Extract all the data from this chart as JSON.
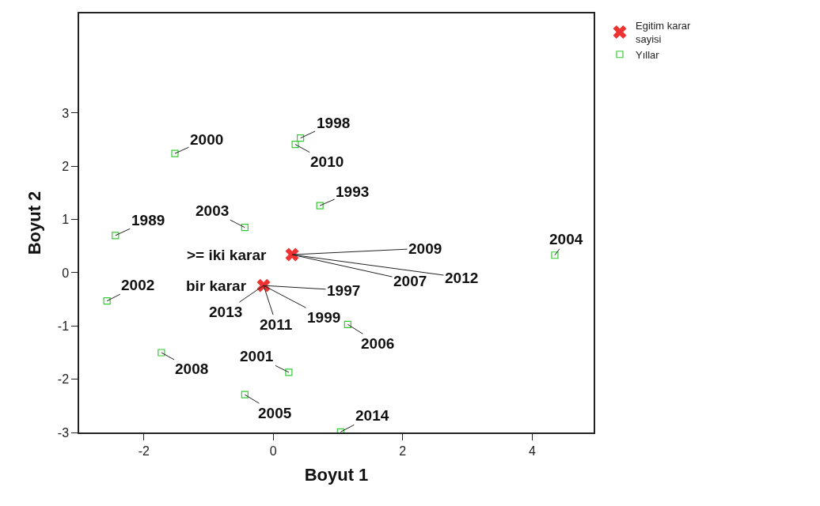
{
  "chart_data": {
    "type": "scatter",
    "xlabel": "Boyut 1",
    "ylabel": "Boyut 2",
    "xlim": [
      -3,
      4.95
    ],
    "ylim": [
      -3,
      4.87
    ],
    "xticks": [
      -2,
      0,
      2,
      4
    ],
    "yticks": [
      -3,
      -2,
      -1,
      0,
      1,
      2,
      3
    ],
    "legend": "top right",
    "series": [
      {
        "name": "Yıllar",
        "color": "#33cc33",
        "marker": "square",
        "x": [
          -1.52,
          0.42,
          0.34,
          0.72,
          -0.44,
          -2.44,
          4.35,
          -2.57,
          1.15,
          -1.73,
          0.24,
          -0.44,
          1.04,
          null,
          null,
          null,
          null,
          null,
          null,
          null
        ],
        "values": [
          2.24,
          2.53,
          2.41,
          1.26,
          0.85,
          0.7,
          0.33,
          -0.53,
          -0.97,
          -1.5,
          -1.87,
          -2.29,
          -2.99,
          null,
          null,
          null,
          null,
          null,
          null,
          null
        ]
      },
      {
        "name": "Egitim karar sayisi",
        "color": "#ee3333",
        "marker": "cross",
        "x": [
          0.29,
          -0.15
        ],
        "values": [
          0.34,
          -0.24
        ]
      }
    ],
    "annotations": [
      {
        "text": "2000",
        "x": -1.52,
        "y": 2.24
      },
      {
        "text": "1998",
        "x": 0.42,
        "y": 2.53
      },
      {
        "text": "2010",
        "x": 0.34,
        "y": 2.41
      },
      {
        "text": "1993",
        "x": 0.72,
        "y": 1.26
      },
      {
        "text": "2003",
        "x": -0.44,
        "y": 0.85
      },
      {
        "text": "1989",
        "x": -2.44,
        "y": 0.7
      },
      {
        "text": "2004",
        "x": 4.35,
        "y": 0.33
      },
      {
        "text": "2002",
        "x": -2.57,
        "y": -0.53
      },
      {
        "text": "2006",
        "x": 1.15,
        "y": -0.97
      },
      {
        "text": "2008",
        "x": -1.73,
        "y": -1.5
      },
      {
        "text": "2001",
        "x": 0.24,
        "y": -1.87
      },
      {
        "text": "2005",
        "x": -0.44,
        "y": -2.29
      },
      {
        "text": "2014",
        "x": 1.04,
        "y": -2.99
      },
      {
        "text": "2009",
        "x": 0.29,
        "y": 0.34
      },
      {
        "text": "2007",
        "x": 0.29,
        "y": 0.34
      },
      {
        "text": "2012",
        "x": 0.29,
        "y": 0.34
      },
      {
        "text": "1997",
        "x": -0.15,
        "y": -0.24
      },
      {
        "text": "2013",
        "x": -0.15,
        "y": -0.24
      },
      {
        "text": "2011",
        "x": -0.15,
        "y": -0.24
      },
      {
        "text": "1999",
        "x": -0.15,
        "y": -0.24
      },
      {
        "text": ">= iki karar",
        "x": 0.29,
        "y": 0.34
      },
      {
        "text": "bir karar",
        "x": -0.15,
        "y": -0.24
      }
    ]
  }
}
